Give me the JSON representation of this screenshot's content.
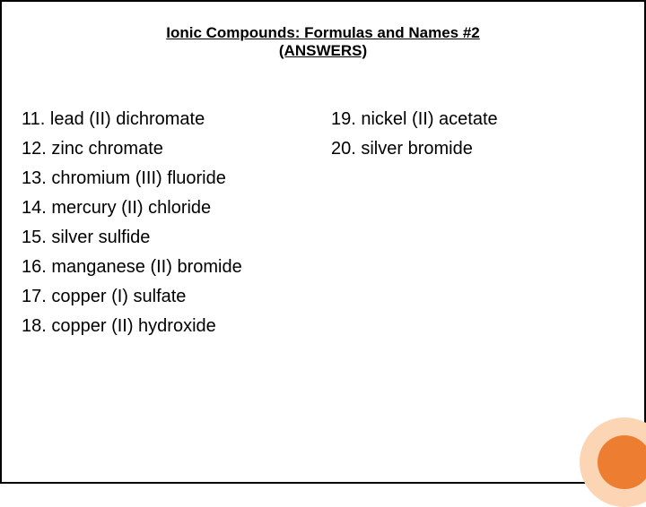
{
  "title": {
    "line1": "Ionic Compounds: Formulas and Names #2",
    "line2": "(ANSWERS)"
  },
  "left_items": [
    {
      "num": "11.",
      "text": "lead (II) dichromate"
    },
    {
      "num": "12.",
      "text": "zinc chromate"
    },
    {
      "num": "13. ",
      "text": "chromium (III) fluoride"
    },
    {
      "num": "14. ",
      "text": "mercury (II) chloride"
    },
    {
      "num": "15.",
      "text": "silver sulfide"
    },
    {
      "num": "16.",
      "text": "manganese (II) bromide"
    },
    {
      "num": "17. ",
      "text": "copper (I) sulfate"
    },
    {
      "num": "18. ",
      "text": "copper (II) hydroxide"
    }
  ],
  "right_items": [
    {
      "num": "19. ",
      "text": "nickel (II) acetate"
    },
    {
      "num": "20. ",
      "text": "silver bromide"
    }
  ],
  "styling": {
    "background_color": "#ffffff",
    "border_color": "#000000",
    "text_color": "#000000",
    "title_fontsize": 17,
    "item_fontsize": 20,
    "decoration_outer_color": "#fcd5b4",
    "decoration_inner_color": "#ed7d31",
    "decoration_outer_diameter": 100,
    "decoration_inner_diameter": 60
  }
}
